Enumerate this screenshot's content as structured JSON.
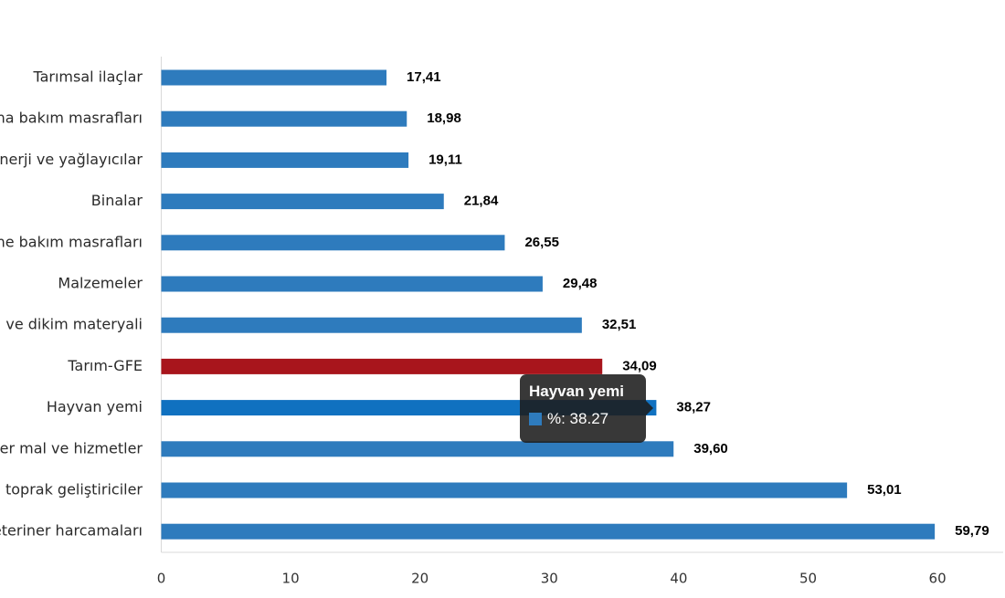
{
  "chart_data": {
    "type": "bar",
    "orientation": "horizontal",
    "categories": [
      "Tarımsal ilaçlar",
      "na bakım masrafları",
      "nerji  ve yağlayıcılar",
      "Binalar",
      "ne bakım masrafları",
      "Malzemeler",
      " ve dikim materyali",
      "Tarım-GFE",
      "Hayvan yemi",
      "er mal ve hizmetler",
      " toprak geliştiriciler",
      "eteriner harcamaları"
    ],
    "values": [
      17.41,
      18.98,
      19.11,
      21.84,
      26.55,
      29.48,
      32.51,
      34.09,
      38.27,
      39.6,
      53.01,
      59.79
    ],
    "value_labels": [
      "17,41",
      "18,98",
      "19,11",
      "21,84",
      "26,55",
      "29,48",
      "32,51",
      "34,09",
      "38,27",
      "39,60",
      "53,01",
      "59,79"
    ],
    "highlight": {
      "category": "Tarım-GFE",
      "color": "#a8151c"
    },
    "hovered": {
      "category": "Hayvan yemi",
      "color": "#1071c0"
    },
    "bar_color": "#2e7bbd",
    "xlim": [
      0,
      65
    ],
    "xticks": [
      0,
      10,
      20,
      30,
      40,
      50,
      60
    ],
    "grid": false,
    "legend": "none"
  },
  "tooltip": {
    "title": "Hayvan yemi",
    "text": "%: 38.27",
    "swatch_color": "#2e7bbd"
  }
}
